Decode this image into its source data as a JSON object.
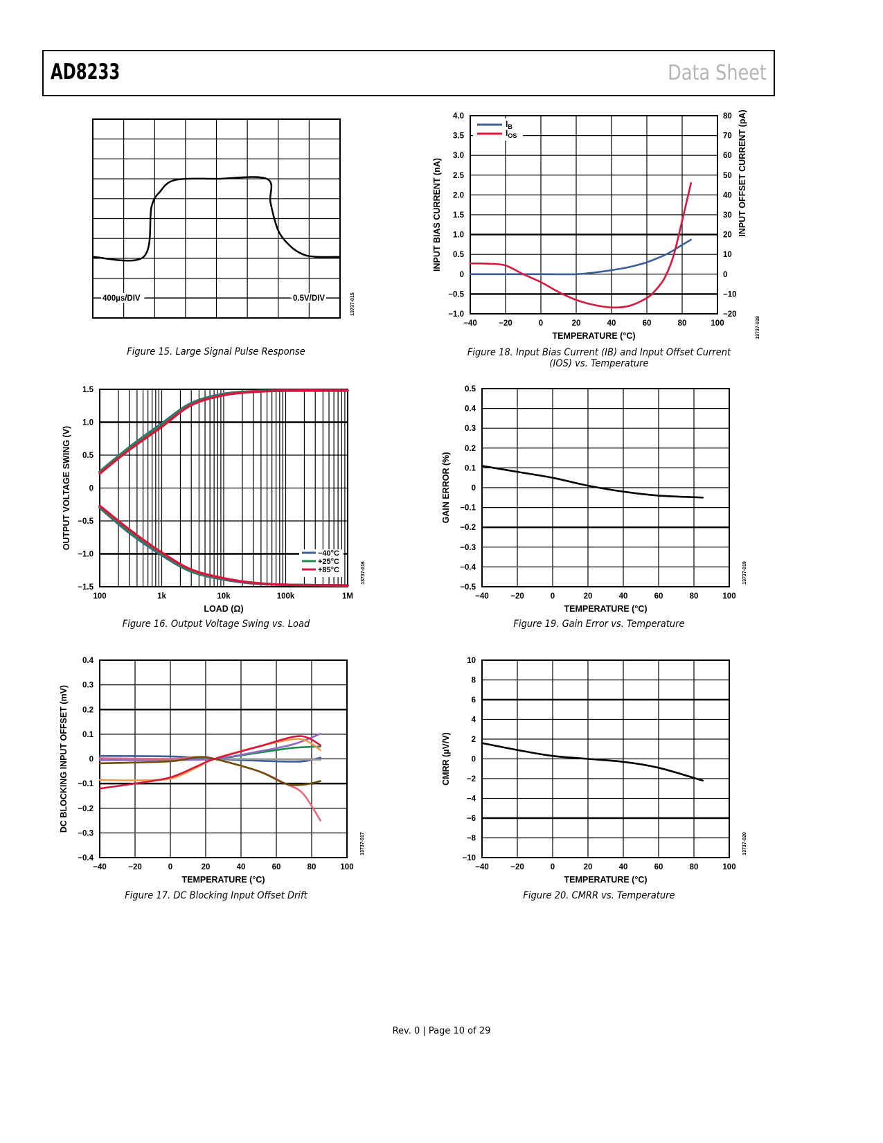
{
  "header": {
    "product": "AD8233",
    "doc_type": "Data Sheet"
  },
  "footer": "Rev. 0 | Page 10 of 29",
  "chart_data": [
    {
      "id": "fig15",
      "type": "line",
      "caption": "Figure 15. Large Signal Pulse Response",
      "code": "13737-015",
      "xlim": [
        0,
        8
      ],
      "ylim": [
        0,
        10
      ],
      "grid": true,
      "xticks": [],
      "yticks": [],
      "annotations": [
        "400µs/DIV",
        "0.5V/DIV"
      ],
      "series": [
        {
          "color": "#000000",
          "x": [
            0,
            1.64,
            1.9,
            2.2,
            2.5,
            3.0,
            4,
            5.63,
            5.75,
            6.0,
            6.4,
            6.8,
            7.2,
            8
          ],
          "y": [
            3.07,
            3.07,
            5.6,
            6.4,
            6.85,
            7.0,
            7.0,
            7.0,
            5.8,
            4.4,
            3.6,
            3.2,
            3.08,
            3.07
          ]
        }
      ]
    },
    {
      "id": "fig18",
      "type": "line",
      "caption": "Figure 18. Input Bias Current (IB) and Input Offset Current (IOS) vs. Temperature",
      "code": "13737-018",
      "xlabel": "TEMPERATURE (°C)",
      "ylabel": "INPUT BIAS CURRENT (nA)",
      "y2label": "INPUT OFFSET CURRENT (pA)",
      "xlim": [
        -40,
        100
      ],
      "ylim": [
        -1,
        4
      ],
      "y2lim": [
        -20,
        80
      ],
      "grid": true,
      "heavy_gridlines": [
        1.0,
        -0.5
      ],
      "xticks": [
        "−40",
        "−20",
        "0",
        "20",
        "40",
        "60",
        "80",
        "100"
      ],
      "xtickvals": [
        -40,
        -20,
        0,
        20,
        40,
        60,
        80,
        100
      ],
      "yticks": [
        "−1.0",
        "−0.5",
        "0",
        "0.5",
        "1.0",
        "1.5",
        "2.0",
        "2.5",
        "3.0",
        "3.5",
        "4.0"
      ],
      "ytickvals": [
        -1,
        -0.5,
        0,
        0.5,
        1,
        1.5,
        2,
        2.5,
        3,
        3.5,
        4
      ],
      "y2ticks": [
        "−20",
        "−10",
        "0",
        "10",
        "20",
        "30",
        "40",
        "50",
        "60",
        "70",
        "80"
      ],
      "legend": "top-left",
      "series": [
        {
          "name": "IB",
          "axis": "left",
          "color": "#3c5f9a",
          "x": [
            -40,
            0,
            20,
            30,
            40,
            50,
            60,
            70,
            75,
            80,
            85
          ],
          "y": [
            0,
            0,
            0,
            0.04,
            0.1,
            0.18,
            0.3,
            0.48,
            0.6,
            0.74,
            0.87
          ]
        },
        {
          "name": "IOS",
          "axis": "right",
          "color": "#d7193f",
          "x": [
            -40,
            -30,
            -20,
            -10,
            0,
            10,
            20,
            30,
            40,
            50,
            60,
            65,
            70,
            75,
            80,
            85
          ],
          "y": [
            5.4,
            5.3,
            4.4,
            0,
            -4,
            -9,
            -13,
            -15.5,
            -16.8,
            -16,
            -12,
            -8,
            -2,
            9,
            27,
            46
          ]
        }
      ]
    },
    {
      "id": "fig16",
      "type": "line",
      "caption": "Figure 16. Output Voltage Swing vs. Load",
      "code": "13737-016",
      "xlabel": "LOAD (Ω)",
      "ylabel": "OUTPUT VOLTAGE SWING (V)",
      "xscale": "log",
      "xlim": [
        100,
        1000000
      ],
      "ylim": [
        -1.5,
        1.5
      ],
      "grid": true,
      "heavy_gridlines": [
        1.0,
        -1.0
      ],
      "xticks": [
        "100",
        "1k",
        "10k",
        "100k",
        "1M"
      ],
      "xtickvals": [
        100,
        1000,
        10000,
        100000,
        1000000
      ],
      "yticks": [
        "−1.5",
        "−1.0",
        "−0.5",
        "0",
        "0.5",
        "1.0",
        "1.5"
      ],
      "ytickvals": [
        -1.5,
        -1,
        -0.5,
        0,
        0.5,
        1,
        1.5
      ],
      "legend": "bottom-right",
      "series": [
        {
          "name": "−40°C",
          "color": "#3c5f9a",
          "x": [
            100,
            300,
            1000,
            3000,
            10000,
            30000,
            100000,
            1000000
          ],
          "y": [
            0.25,
            0.62,
            0.98,
            1.29,
            1.43,
            1.47,
            1.48,
            1.48
          ]
        },
        {
          "name": "+25°C",
          "color": "#1e8c50",
          "x": [
            100,
            300,
            1000,
            3000,
            10000,
            30000,
            100000,
            1000000
          ],
          "y": [
            0.24,
            0.61,
            0.96,
            1.28,
            1.42,
            1.47,
            1.48,
            1.48
          ]
        },
        {
          "name": "+85°C",
          "color": "#d7193f",
          "x": [
            100,
            300,
            1000,
            3000,
            10000,
            30000,
            100000,
            1000000
          ],
          "y": [
            0.22,
            0.58,
            0.93,
            1.26,
            1.41,
            1.46,
            1.48,
            1.48
          ]
        },
        {
          "name": "−40°C",
          "color": "#3c5f9a",
          "x": [
            100,
            300,
            1000,
            3000,
            10000,
            30000,
            100000,
            1000000
          ],
          "y": [
            -0.3,
            -0.68,
            -1.02,
            -1.27,
            -1.39,
            -1.45,
            -1.47,
            -1.48
          ]
        },
        {
          "name": "+25°C",
          "color": "#1e8c50",
          "x": [
            100,
            300,
            1000,
            3000,
            10000,
            30000,
            100000,
            1000000
          ],
          "y": [
            -0.29,
            -0.66,
            -1.0,
            -1.26,
            -1.38,
            -1.44,
            -1.47,
            -1.48
          ]
        },
        {
          "name": "+85°C",
          "color": "#d7193f",
          "x": [
            100,
            300,
            1000,
            3000,
            10000,
            30000,
            100000,
            1000000
          ],
          "y": [
            -0.27,
            -0.63,
            -0.98,
            -1.24,
            -1.37,
            -1.44,
            -1.47,
            -1.48
          ]
        }
      ]
    },
    {
      "id": "fig19",
      "type": "line",
      "caption": "Figure 19. Gain Error vs. Temperature",
      "code": "13737-019",
      "xlabel": "TEMPERATURE (°C)",
      "ylabel": "GAIN ERROR (%)",
      "xlim": [
        -40,
        100
      ],
      "ylim": [
        -0.5,
        0.5
      ],
      "grid": true,
      "heavy_gridlines": [
        -0.2
      ],
      "xticks": [
        "−40",
        "−20",
        "0",
        "20",
        "40",
        "60",
        "80",
        "100"
      ],
      "xtickvals": [
        -40,
        -20,
        0,
        20,
        40,
        60,
        80,
        100
      ],
      "yticks": [
        "−0.5",
        "−0.4",
        "−0.3",
        "−0.2",
        "−0.1",
        "0",
        "0.1",
        "0.2",
        "0.3",
        "0.4",
        "0.5"
      ],
      "ytickvals": [
        -0.5,
        -0.4,
        -0.3,
        -0.2,
        -0.1,
        0,
        0.1,
        0.2,
        0.3,
        0.4,
        0.5
      ],
      "series": [
        {
          "color": "#000000",
          "x": [
            -40,
            -20,
            0,
            20,
            40,
            60,
            85
          ],
          "y": [
            0.11,
            0.08,
            0.05,
            0.01,
            -0.02,
            -0.04,
            -0.05
          ]
        }
      ]
    },
    {
      "id": "fig17",
      "type": "line",
      "caption": "Figure 17. DC Blocking Input Offset Drift",
      "code": "13737-017",
      "xlabel": "TEMPERATURE (°C)",
      "ylabel": "DC BLOCKING INPUT OFFSET (mV)",
      "xlim": [
        -40,
        100
      ],
      "ylim": [
        -0.4,
        0.4
      ],
      "grid": true,
      "heavy_gridlines": [
        0.2,
        -0.1
      ],
      "xticks": [
        "−40",
        "−20",
        "0",
        "20",
        "40",
        "60",
        "80",
        "100"
      ],
      "xtickvals": [
        -40,
        -20,
        0,
        20,
        40,
        60,
        80,
        100
      ],
      "yticks": [
        "−0.4",
        "−0.3",
        "−0.2",
        "−0.1",
        "0",
        "0.1",
        "0.2",
        "0.3",
        "0.4"
      ],
      "ytickvals": [
        -0.4,
        -0.3,
        -0.2,
        -0.1,
        0,
        0.1,
        0.2,
        0.3,
        0.4
      ],
      "series": [
        {
          "color": "#3c5f9a",
          "x": [
            -40,
            0,
            25,
            60,
            75,
            85
          ],
          "y": [
            0.012,
            0.01,
            0,
            -0.01,
            -0.01,
            0.005
          ]
        },
        {
          "color": "#999999",
          "x": [
            -40,
            25,
            85
          ],
          "y": [
            -0.005,
            0,
            -0.003
          ]
        },
        {
          "color": "#1e8c50",
          "x": [
            -40,
            0,
            25,
            50,
            70,
            85
          ],
          "y": [
            0,
            0,
            0,
            0.025,
            0.045,
            0.05
          ]
        },
        {
          "color": "#8e6bbf",
          "x": [
            -40,
            0,
            25,
            50,
            70,
            85
          ],
          "y": [
            -0.005,
            -0.005,
            0,
            0.03,
            0.06,
            0.102
          ]
        },
        {
          "color": "#e86a80",
          "x": [
            -40,
            0,
            15,
            25,
            50,
            65,
            75,
            85
          ],
          "y": [
            0.003,
            0,
            0.008,
            0,
            -0.05,
            -0.1,
            -0.14,
            -0.25
          ]
        },
        {
          "color": "#6e4e0a",
          "x": [
            -40,
            0,
            15,
            25,
            50,
            65,
            75,
            85
          ],
          "y": [
            -0.018,
            -0.01,
            0.007,
            0,
            -0.05,
            -0.1,
            -0.105,
            -0.09
          ]
        },
        {
          "color": "#f39a4a",
          "x": [
            -40,
            -20,
            0,
            15,
            25,
            50,
            70,
            78,
            85
          ],
          "y": [
            -0.085,
            -0.087,
            -0.08,
            -0.035,
            0,
            0.05,
            0.08,
            0.07,
            0.035
          ]
        },
        {
          "color": "#d7193f",
          "x": [
            -40,
            -20,
            0,
            15,
            25,
            50,
            70,
            78,
            85
          ],
          "y": [
            -0.12,
            -0.1,
            -0.075,
            -0.03,
            0,
            0.05,
            0.09,
            0.085,
            0.055
          ]
        }
      ]
    },
    {
      "id": "fig20",
      "type": "line",
      "caption": "Figure 20. CMRR vs. Temperature",
      "code": "13737-020",
      "xlabel": "TEMPERATURE (°C)",
      "ylabel": "CMRR (µV/V)",
      "xlim": [
        -40,
        100
      ],
      "ylim": [
        -10,
        10
      ],
      "grid": true,
      "heavy_gridlines": [
        6,
        -6
      ],
      "xticks": [
        "−40",
        "−20",
        "0",
        "20",
        "40",
        "60",
        "80",
        "100"
      ],
      "xtickvals": [
        -40,
        -20,
        0,
        20,
        40,
        60,
        80,
        100
      ],
      "yticks": [
        "−10",
        "−8",
        "−6",
        "−4",
        "−2",
        "0",
        "2",
        "4",
        "6",
        "8",
        "10"
      ],
      "ytickvals": [
        -10,
        -8,
        -6,
        -4,
        -2,
        0,
        2,
        4,
        6,
        8,
        10
      ],
      "series": [
        {
          "color": "#000000",
          "x": [
            -40,
            -20,
            0,
            20,
            40,
            60,
            85
          ],
          "y": [
            1.6,
            0.9,
            0.3,
            0,
            -0.3,
            -0.9,
            -2.2
          ]
        }
      ]
    }
  ]
}
